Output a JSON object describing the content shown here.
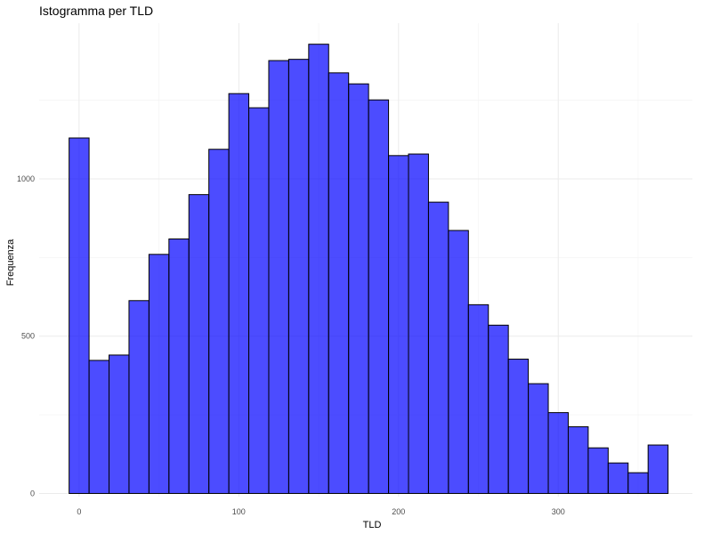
{
  "chart_data": {
    "type": "bar",
    "title": "Istogramma per TLD",
    "xlabel": "TLD",
    "ylabel": "Frequenza",
    "bin_width": 12.5,
    "first_bin_center": 0,
    "x_ticks": [
      0,
      100,
      200,
      300
    ],
    "x_tick_labels": [
      "0",
      "100",
      "200",
      "300"
    ],
    "y_ticks": [
      0,
      500,
      1000
    ],
    "y_tick_labels": [
      "0",
      "500",
      "1000"
    ],
    "xlim": [
      -25,
      384
    ],
    "ylim": [
      -10,
      1495
    ],
    "bar_fill": "#0000ff",
    "bar_fill_opacity": 0.7,
    "bar_stroke": "#000000",
    "grid": true,
    "legend": "none",
    "bin_centers": [
      0,
      12.5,
      25,
      37.5,
      50,
      62.5,
      75,
      87.5,
      100,
      112.5,
      125,
      137.5,
      150,
      162.5,
      175,
      187.5,
      200,
      212.5,
      225,
      237.5,
      250,
      262.5,
      275,
      287.5,
      300,
      312.5,
      325,
      337.5,
      350,
      362.5
    ],
    "values": [
      1130,
      423,
      440,
      613,
      760,
      809,
      950,
      1094,
      1271,
      1226,
      1376,
      1380,
      1428,
      1337,
      1302,
      1251,
      1074,
      1079,
      926,
      836,
      600,
      535,
      427,
      349,
      257,
      212,
      145,
      97,
      66,
      154
    ]
  }
}
